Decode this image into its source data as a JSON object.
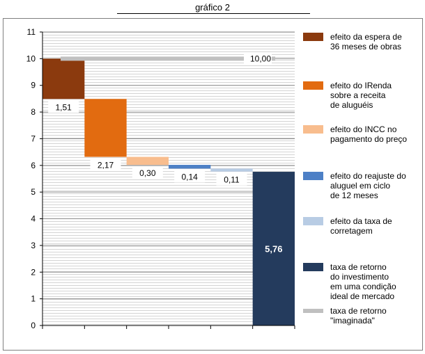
{
  "chart_data": {
    "type": "bar",
    "title": "gráfico 2",
    "ylim": [
      0,
      11
    ],
    "yticks": [
      0,
      1,
      2,
      3,
      4,
      5,
      6,
      7,
      8,
      9,
      10,
      11
    ],
    "grid": true,
    "legend_position": "right",
    "reference_line": {
      "name": "taxa de retorno\n\"imaginada\"",
      "value": 10.0,
      "label": "10,00",
      "color": "#c0c0c0"
    },
    "series": [
      {
        "name": "efeito da espera de\n36 meses de obras",
        "start": 10.0,
        "end": 8.49,
        "label": "1,51",
        "color": "#8b3a0e"
      },
      {
        "name": "efeito do IRenda\nsobre a receita\nde aluguéis",
        "start": 8.49,
        "end": 6.32,
        "label": "2,17",
        "color": "#e26b10"
      },
      {
        "name": "efeito do INCC no\npagamento do preço",
        "start": 6.32,
        "end": 6.02,
        "label": "0,30",
        "color": "#f8bd8e"
      },
      {
        "name": "efeito do reajuste do\naluguel em ciclo\nde 12 meses",
        "start": 6.02,
        "end": 5.88,
        "label": "0,14",
        "color": "#4d80c6"
      },
      {
        "name": "efeito da taxa de\ncorretagem",
        "start": 5.88,
        "end": 5.77,
        "label": "0,11",
        "color": "#b8cce4"
      },
      {
        "name": "taxa de retorno\ndo investimento\nem uma condição\nideal  de mercado",
        "start": 5.76,
        "end": 0,
        "label": "5,76",
        "color": "#243b5d"
      }
    ]
  }
}
